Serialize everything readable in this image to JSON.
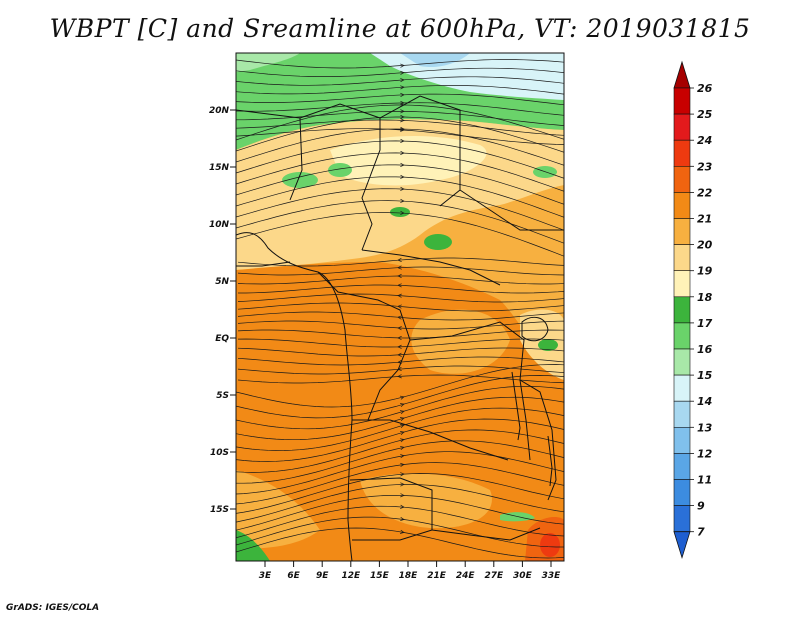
{
  "title": "WBPT [C] and Sreamline at 600hPa, VT: 2019031815",
  "credit": "GrADS: IGES/COLA",
  "map": {
    "lat_labels": [
      "20N",
      "15N",
      "10N",
      "5N",
      "EQ",
      "5S",
      "10S",
      "15S"
    ],
    "lon_labels": [
      "3E",
      "6E",
      "9E",
      "12E",
      "15E",
      "18E",
      "21E",
      "24E",
      "27E",
      "30E",
      "33E"
    ]
  },
  "colorbar": {
    "levels": [
      "26",
      "25",
      "24",
      "23",
      "22",
      "21",
      "20",
      "19",
      "18",
      "17",
      "16",
      "15",
      "14",
      "13",
      "12",
      "11",
      "9",
      "7"
    ],
    "colors": {
      "above_26": "#a50000",
      "25_26": "#c80000",
      "24_25": "#e31a1c",
      "23_24": "#ee3a10",
      "22_23": "#f06410",
      "21_22": "#f28a16",
      "20_21": "#f7b040",
      "19_20": "#fcd88a",
      "18_19": "#fff2b8",
      "17_18": "#3cb43c",
      "16_17": "#6ad36a",
      "15_16": "#a8e8a8",
      "14_15": "#d8f4f8",
      "13_14": "#a8d8f0",
      "12_13": "#80c0ec",
      "11_12": "#5aa6e6",
      "9_11": "#3c8ce0",
      "7_9": "#2a70d8",
      "below_7": "#1e5ed0"
    }
  }
}
